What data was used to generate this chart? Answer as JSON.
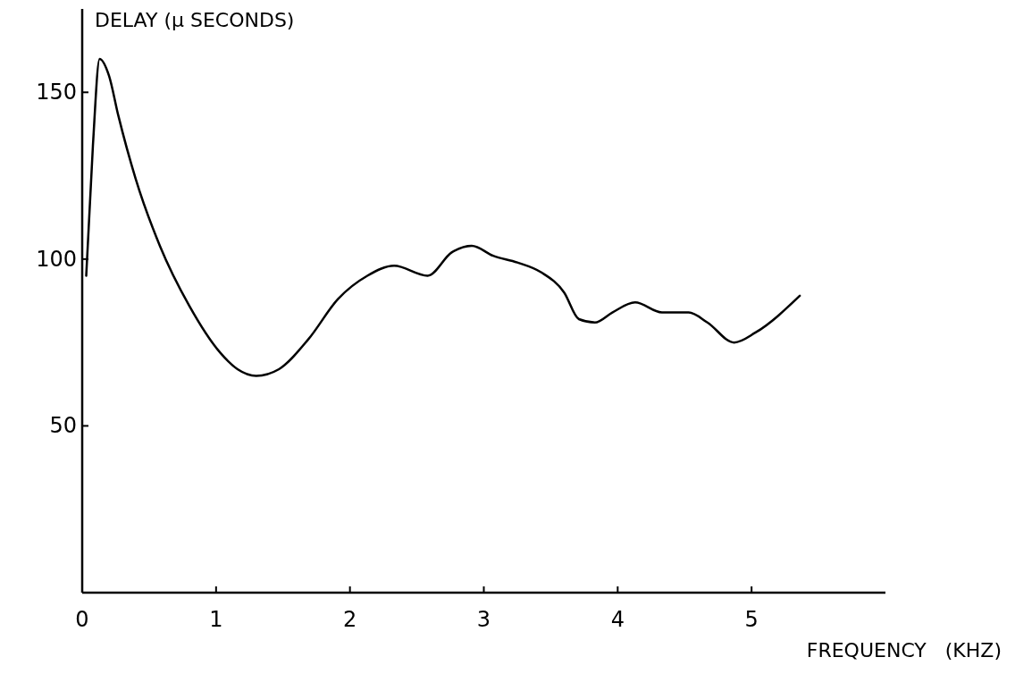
{
  "chart_data": {
    "type": "line",
    "xlabel": "FREQUENCY   (KHZ)",
    "ylabel": "DELAY  (μ SECONDS)",
    "x": [
      0.03,
      0.08,
      0.13,
      0.2,
      0.27,
      0.4,
      0.58,
      0.8,
      1.03,
      1.16,
      1.3,
      1.47,
      1.69,
      1.91,
      2.13,
      2.33,
      2.58,
      2.76,
      2.91,
      3.07,
      3.25,
      3.43,
      3.6,
      3.71,
      3.83,
      3.96,
      4.13,
      4.33,
      4.53,
      4.67,
      4.87,
      5.03,
      5.36
    ],
    "series": [
      {
        "color": "#000000",
        "values": [
          95,
          134,
          160,
          155,
          143,
          124,
          104,
          86,
          72,
          67,
          65,
          67,
          76,
          88,
          95,
          98,
          95,
          102,
          104,
          101,
          99,
          96,
          90,
          82,
          81,
          84,
          87,
          84,
          84,
          81,
          75,
          78,
          89
        ]
      }
    ],
    "xlim": [
      0,
      6
    ],
    "ylim": [
      0,
      175
    ],
    "xticks": [
      0,
      1,
      2,
      3,
      4,
      5
    ],
    "yticks": [
      50,
      100,
      150
    ],
    "marker": "none",
    "line_style": "solid"
  }
}
